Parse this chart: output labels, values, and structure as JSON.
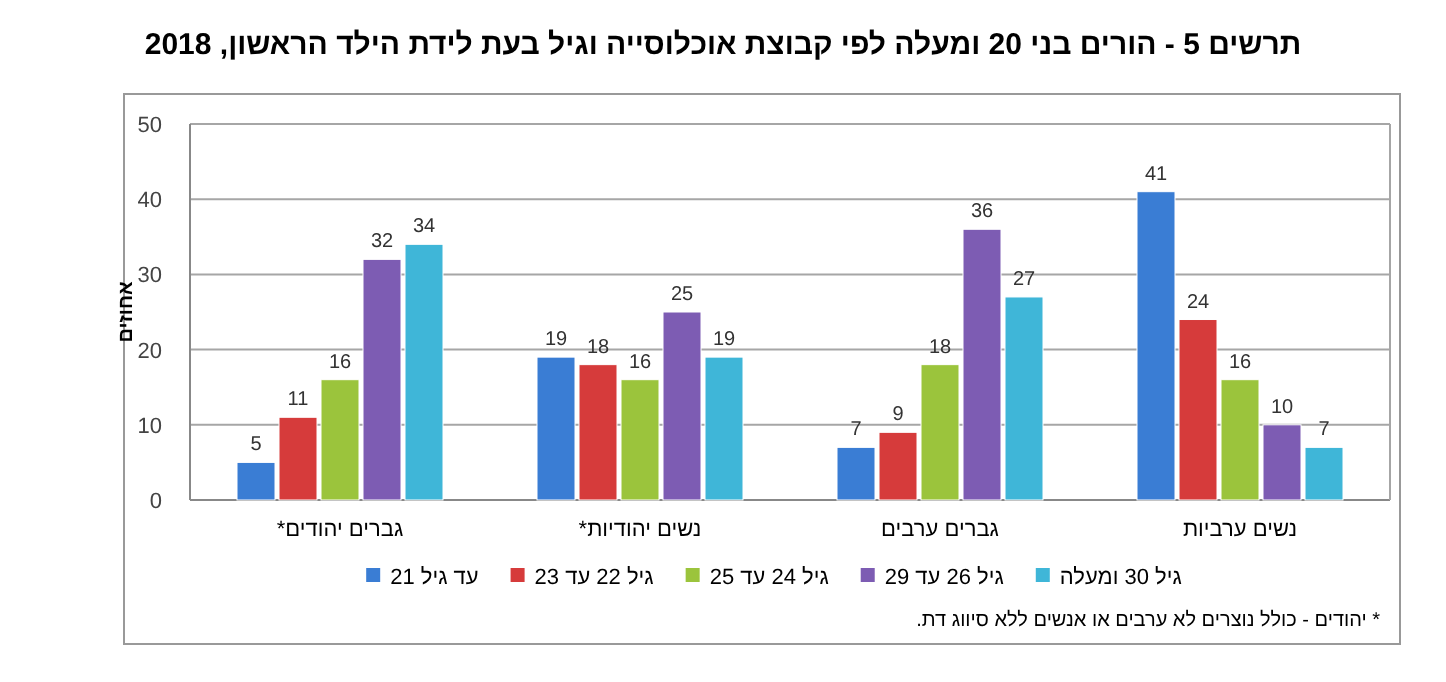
{
  "chart_data": {
    "type": "bar",
    "title": "תרשים 5 - הורים בני 20 ומעלה לפי קבוצת אוכלוסייה וגיל בעת לידת הילד הראשון, 2018",
    "ylabel": "אחוזים",
    "categories": [
      "גברים יהודים*",
      "נשים יהודיות*",
      "גברים ערבים",
      "נשים ערביות"
    ],
    "series": [
      {
        "name": "עד גיל 21",
        "color": "#3a7dd4",
        "values": [
          5,
          19,
          7,
          41
        ]
      },
      {
        "name": "גיל 22 עד 23",
        "color": "#d63b3b",
        "values": [
          11,
          18,
          9,
          24
        ]
      },
      {
        "name": "גיל 24 עד 25",
        "color": "#9bc43c",
        "values": [
          16,
          16,
          18,
          16
        ]
      },
      {
        "name": "גיל 26 עד 29",
        "color": "#7d5cb3",
        "values": [
          32,
          25,
          36,
          10
        ]
      },
      {
        "name": "גיל 30 ומעלה",
        "color": "#3fb6d8",
        "values": [
          34,
          19,
          27,
          7
        ]
      }
    ],
    "ylim": [
      0,
      50
    ],
    "yticks": [
      0,
      10,
      20,
      30,
      40,
      50
    ],
    "grid": "y",
    "legend": "bottom",
    "data_labels": true,
    "annotations": [
      "* יהודים - כולל נוצרים לא ערבים או אנשים ללא סיווג דת."
    ]
  }
}
